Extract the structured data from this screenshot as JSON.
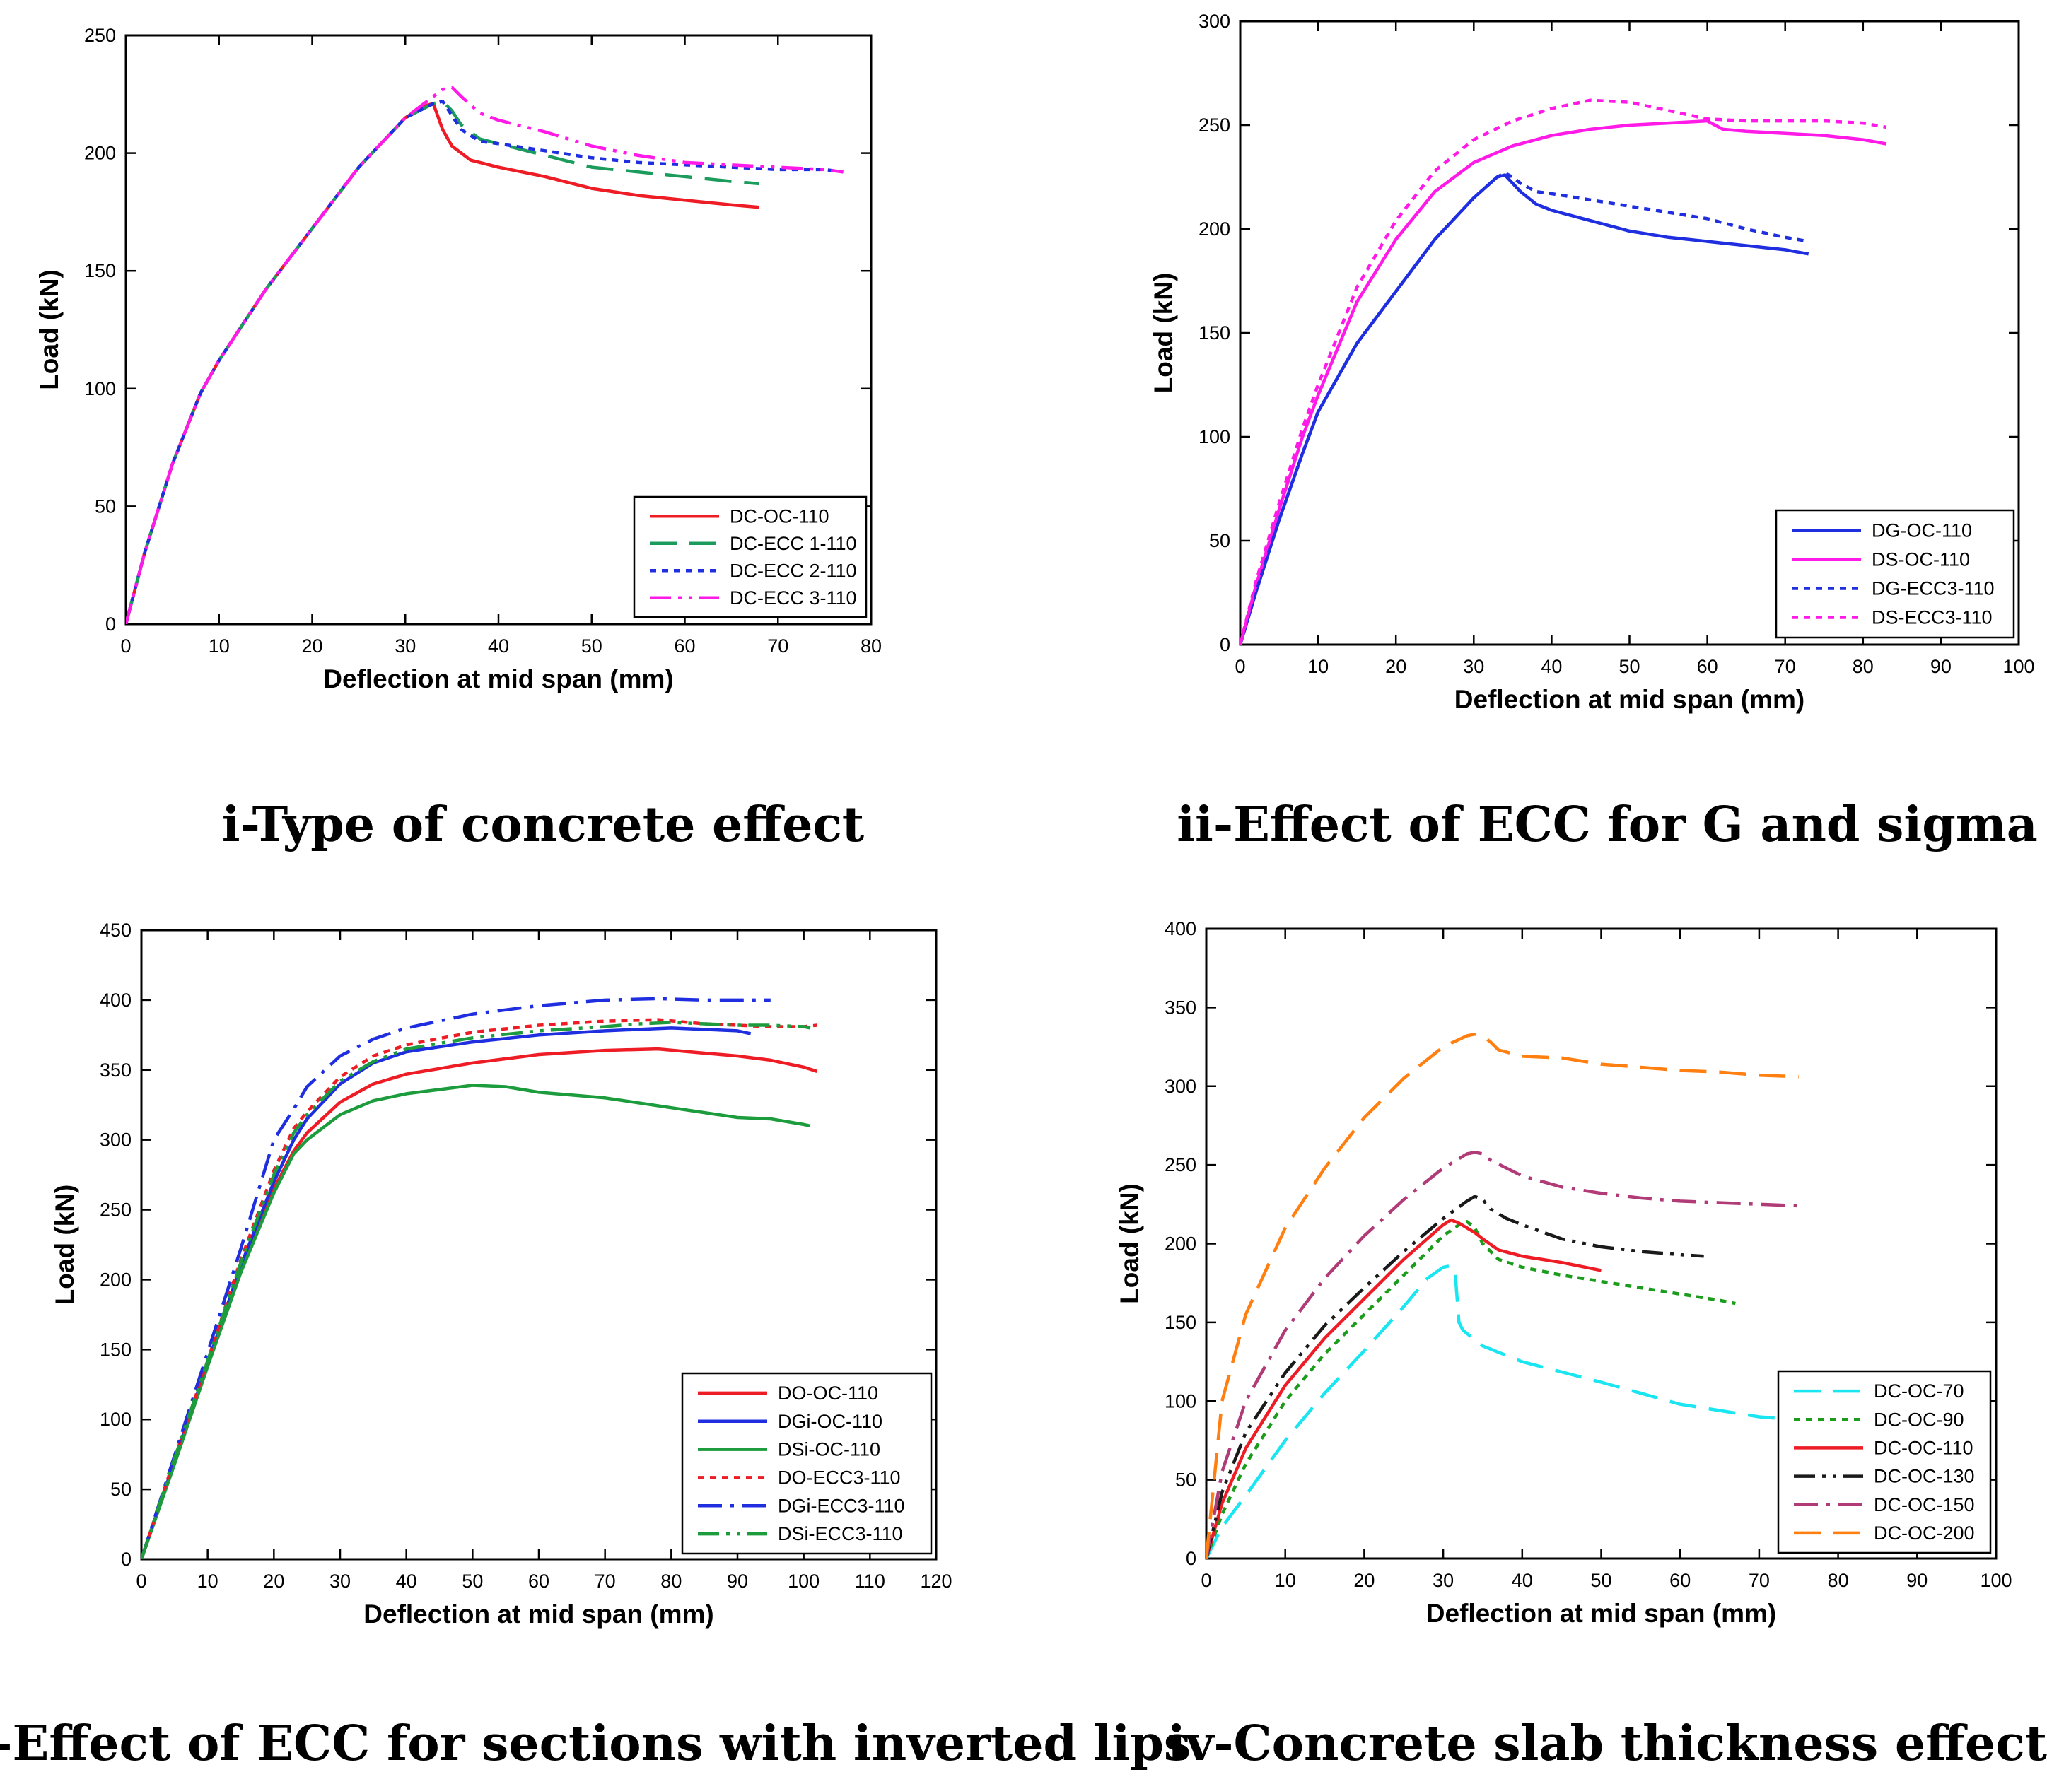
{
  "chart_data": [
    {
      "type": "line",
      "caption": "i-Type of concrete effect",
      "xlabel": "Deflection at mid span (mm)",
      "ylabel": "Load (kN)",
      "xlim": [
        0,
        80
      ],
      "ylim": [
        0,
        250
      ],
      "xticks": [
        "0",
        "10",
        "20",
        "30",
        "40",
        "50",
        "60",
        "70",
        "80"
      ],
      "yticks": [
        "0",
        "50",
        "100",
        "150",
        "200",
        "250"
      ],
      "legend_position": "bottom-right",
      "series": [
        {
          "name": "DC-OC-110",
          "color": "#ee1c25",
          "dash": "solid",
          "x": [
            0,
            2,
            5,
            8,
            10,
            15,
            20,
            25,
            30,
            32,
            33,
            34,
            35,
            37,
            40,
            45,
            50,
            55,
            60,
            65,
            68
          ],
          "y": [
            0,
            30,
            68,
            98,
            112,
            142,
            168,
            194,
            215,
            220,
            221,
            210,
            203,
            197,
            194,
            190,
            185,
            182,
            180,
            178,
            177
          ]
        },
        {
          "name": "DC-ECC 1-110",
          "color": "#1c9c5c",
          "dash": "longdash",
          "x": [
            0,
            2,
            5,
            8,
            10,
            15,
            20,
            25,
            30,
            33,
            34,
            35,
            36,
            38,
            40,
            45,
            50,
            55,
            60,
            65,
            68
          ],
          "y": [
            0,
            30,
            68,
            98,
            112,
            142,
            168,
            194,
            215,
            221,
            222,
            218,
            212,
            206,
            204,
            199,
            194,
            192,
            190,
            188,
            187
          ]
        },
        {
          "name": "DC-ECC 2-110",
          "color": "#1f2fe0",
          "dash": "dot",
          "x": [
            0,
            2,
            5,
            8,
            10,
            15,
            20,
            25,
            30,
            33,
            34,
            35,
            36,
            38,
            40,
            45,
            50,
            55,
            60,
            65,
            70,
            75,
            77
          ],
          "y": [
            0,
            30,
            68,
            98,
            112,
            142,
            168,
            194,
            215,
            221,
            222,
            216,
            210,
            205,
            204,
            201,
            198,
            196,
            195,
            194,
            193,
            193,
            192
          ]
        },
        {
          "name": "DC-ECC 3-110",
          "color": "#ff1ae8",
          "dash": "dashdotdot",
          "x": [
            0,
            2,
            5,
            8,
            10,
            15,
            20,
            25,
            30,
            33,
            34,
            35,
            36,
            38,
            40,
            45,
            50,
            55,
            60,
            65,
            70,
            75,
            77
          ],
          "y": [
            0,
            30,
            68,
            98,
            112,
            142,
            168,
            194,
            215,
            224,
            227,
            228,
            224,
            217,
            214,
            209,
            203,
            199,
            196,
            195,
            194,
            193,
            192
          ]
        }
      ]
    },
    {
      "type": "line",
      "caption": "ii-Effect of ECC for G and sigma",
      "xlabel": "Deflection at mid span (mm)",
      "ylabel": "Load (kN)",
      "xlim": [
        0,
        100
      ],
      "ylim": [
        0,
        300
      ],
      "xticks": [
        "0",
        "10",
        "20",
        "30",
        "40",
        "50",
        "60",
        "70",
        "80",
        "90",
        "100"
      ],
      "yticks": [
        "0",
        "50",
        "100",
        "150",
        "200",
        "250",
        "300"
      ],
      "legend_position": "bottom-right",
      "series": [
        {
          "name": "DG-OC-110",
          "color": "#1f2fe0",
          "dash": "solid",
          "x": [
            0,
            2,
            5,
            8,
            10,
            15,
            20,
            25,
            30,
            33,
            34,
            35,
            36,
            38,
            40,
            45,
            50,
            55,
            60,
            65,
            70,
            73
          ],
          "y": [
            0,
            25,
            60,
            92,
            112,
            145,
            170,
            195,
            215,
            225,
            226,
            222,
            218,
            212,
            209,
            204,
            199,
            196,
            194,
            192,
            190,
            188
          ]
        },
        {
          "name": "DS-OC-110",
          "color": "#ff1ae8",
          "dash": "solid",
          "x": [
            0,
            2,
            5,
            8,
            10,
            15,
            20,
            25,
            30,
            35,
            40,
            45,
            50,
            55,
            60,
            62,
            65,
            70,
            75,
            80,
            83
          ],
          "y": [
            0,
            28,
            65,
            100,
            120,
            165,
            195,
            218,
            232,
            240,
            245,
            248,
            250,
            251,
            252,
            248,
            247,
            246,
            245,
            243,
            241
          ]
        },
        {
          "name": "DG-ECC3-110",
          "color": "#1f2fe0",
          "dash": "dot",
          "x": [
            0,
            2,
            5,
            8,
            10,
            15,
            20,
            25,
            30,
            33,
            34,
            35,
            36,
            38,
            40,
            45,
            50,
            55,
            60,
            65,
            70,
            73
          ],
          "y": [
            0,
            25,
            60,
            92,
            112,
            145,
            170,
            195,
            215,
            225,
            227,
            225,
            222,
            218,
            217,
            214,
            211,
            208,
            205,
            200,
            196,
            194
          ]
        },
        {
          "name": "DS-ECC3-110",
          "color": "#ff1ae8",
          "dash": "dot",
          "x": [
            0,
            2,
            5,
            8,
            10,
            15,
            20,
            25,
            30,
            35,
            40,
            45,
            50,
            55,
            60,
            65,
            70,
            75,
            80,
            83
          ],
          "y": [
            0,
            30,
            68,
            104,
            125,
            172,
            204,
            228,
            243,
            252,
            258,
            262,
            261,
            257,
            253,
            252,
            252,
            252,
            251,
            249
          ]
        }
      ]
    },
    {
      "type": "line",
      "caption": "iii-Effect of ECC for sections with inverted lips",
      "xlabel": "Deflection at mid span (mm)",
      "ylabel": "Load (kN)",
      "xlim": [
        0,
        120
      ],
      "ylim": [
        0,
        450
      ],
      "xticks": [
        "0",
        "10",
        "20",
        "30",
        "40",
        "50",
        "60",
        "70",
        "80",
        "90",
        "100",
        "110",
        "120"
      ],
      "yticks": [
        "0",
        "50",
        "100",
        "150",
        "200",
        "250",
        "300",
        "350",
        "400",
        "450"
      ],
      "legend_position": "bottom-right",
      "series": [
        {
          "name": "DO-OC-110",
          "color": "#ee1c25",
          "dash": "solid",
          "x": [
            0,
            5,
            10,
            15,
            20,
            23,
            25,
            30,
            35,
            40,
            50,
            60,
            70,
            78,
            85,
            90,
            95,
            100,
            102
          ],
          "y": [
            0,
            70,
            140,
            210,
            265,
            292,
            305,
            327,
            340,
            347,
            355,
            361,
            364,
            365,
            362,
            360,
            357,
            352,
            349
          ]
        },
        {
          "name": "DGi-OC-110",
          "color": "#1f2fe0",
          "dash": "solid",
          "x": [
            0,
            5,
            10,
            15,
            20,
            23,
            25,
            30,
            35,
            40,
            50,
            60,
            70,
            80,
            85,
            90,
            92
          ],
          "y": [
            0,
            70,
            140,
            210,
            270,
            300,
            315,
            340,
            355,
            363,
            370,
            375,
            378,
            380,
            379,
            378,
            376
          ]
        },
        {
          "name": "DSi-OC-110",
          "color": "#1c9c3c",
          "dash": "solid",
          "x": [
            0,
            5,
            10,
            15,
            20,
            23,
            25,
            30,
            35,
            40,
            45,
            50,
            55,
            60,
            70,
            80,
            90,
            95,
            100,
            101
          ],
          "y": [
            0,
            68,
            138,
            205,
            262,
            290,
            300,
            318,
            328,
            333,
            336,
            339,
            338,
            334,
            330,
            323,
            316,
            315,
            311,
            310
          ]
        },
        {
          "name": "DO-ECC3-110",
          "color": "#ee1c25",
          "dash": "dot",
          "x": [
            0,
            5,
            10,
            15,
            20,
            23,
            25,
            30,
            35,
            40,
            50,
            60,
            70,
            78,
            85,
            90,
            95,
            100,
            102
          ],
          "y": [
            0,
            72,
            142,
            214,
            278,
            308,
            320,
            345,
            360,
            368,
            377,
            382,
            385,
            386,
            383,
            382,
            381,
            381,
            382
          ]
        },
        {
          "name": "DGi-ECC3-110",
          "color": "#1f2fe0",
          "dash": "dashdot",
          "x": [
            0,
            5,
            10,
            15,
            20,
            23,
            25,
            30,
            35,
            40,
            50,
            60,
            70,
            78,
            85,
            90,
            95
          ],
          "y": [
            0,
            74,
            148,
            222,
            300,
            322,
            338,
            360,
            372,
            380,
            390,
            396,
            400,
            401,
            400,
            400,
            400
          ]
        },
        {
          "name": "DSi-ECC3-110",
          "color": "#1c9c3c",
          "dash": "dashdotdot",
          "x": [
            0,
            5,
            10,
            15,
            20,
            23,
            25,
            30,
            35,
            40,
            50,
            60,
            70,
            75,
            80,
            85,
            90,
            95,
            100,
            101
          ],
          "y": [
            0,
            72,
            142,
            212,
            275,
            305,
            318,
            342,
            356,
            365,
            373,
            378,
            381,
            383,
            384,
            383,
            382,
            382,
            381,
            380
          ]
        }
      ]
    },
    {
      "type": "line",
      "caption": "iv-Concrete slab thickness effect",
      "xlabel": "Deflection at mid span (mm)",
      "ylabel": "Load (kN)",
      "xlim": [
        0,
        100
      ],
      "ylim": [
        0,
        400
      ],
      "xticks": [
        "0",
        "10",
        "20",
        "30",
        "40",
        "50",
        "60",
        "70",
        "80",
        "90",
        "100"
      ],
      "yticks": [
        "0",
        "50",
        "100",
        "150",
        "200",
        "250",
        "300",
        "350",
        "400"
      ],
      "legend_position": "bottom-right",
      "series": [
        {
          "name": "DC-OC-70",
          "color": "#19e6f0",
          "dash": "longdash",
          "x": [
            0,
            2,
            5,
            10,
            15,
            20,
            25,
            28,
            30,
            31,
            31.5,
            32,
            32.5,
            35,
            40,
            50,
            60,
            70,
            75
          ],
          "y": [
            0,
            20,
            40,
            75,
            105,
            132,
            160,
            178,
            185,
            186,
            182,
            150,
            145,
            135,
            125,
            112,
            98,
            90,
            88
          ]
        },
        {
          "name": "DC-OC-90",
          "color": "#1c9c1c",
          "dash": "dot",
          "x": [
            0,
            2,
            5,
            10,
            15,
            20,
            25,
            30,
            32,
            33,
            34,
            35,
            37,
            40,
            45,
            50,
            55,
            60,
            65,
            67
          ],
          "y": [
            0,
            28,
            60,
            100,
            130,
            155,
            180,
            205,
            212,
            214,
            210,
            200,
            190,
            185,
            180,
            176,
            172,
            168,
            164,
            162
          ]
        },
        {
          "name": "DC-OC-110",
          "color": "#ee1c25",
          "dash": "solid",
          "x": [
            0,
            2,
            5,
            10,
            15,
            20,
            25,
            30,
            31,
            32,
            33,
            34,
            35,
            37,
            40,
            45,
            50
          ],
          "y": [
            0,
            35,
            70,
            110,
            140,
            165,
            190,
            212,
            215,
            213,
            210,
            207,
            203,
            196,
            192,
            188,
            183
          ]
        },
        {
          "name": "DC-OC-130",
          "color": "#1a1a1a",
          "dash": "dashdotdot",
          "x": [
            0,
            2,
            5,
            10,
            15,
            20,
            25,
            30,
            33,
            34,
            35,
            36,
            38,
            40,
            45,
            50,
            55,
            60,
            63
          ],
          "y": [
            0,
            42,
            80,
            118,
            148,
            172,
            195,
            216,
            227,
            230,
            228,
            222,
            216,
            212,
            203,
            198,
            195,
            193,
            192
          ]
        },
        {
          "name": "DC-OC-150",
          "color": "#b03b77",
          "dash": "dashdot",
          "x": [
            0,
            2,
            5,
            10,
            15,
            20,
            25,
            30,
            33,
            34,
            35,
            36,
            38,
            40,
            45,
            50,
            55,
            60,
            65,
            70,
            75
          ],
          "y": [
            0,
            55,
            100,
            145,
            178,
            205,
            228,
            248,
            257,
            258,
            257,
            253,
            248,
            243,
            236,
            232,
            229,
            227,
            226,
            225,
            224
          ]
        },
        {
          "name": "DC-OC-200",
          "color": "#ff7f10",
          "dash": "longdash",
          "x": [
            0,
            1,
            2,
            5,
            10,
            15,
            20,
            25,
            30,
            33,
            34,
            35,
            36,
            37,
            40,
            45,
            50,
            55,
            60,
            65,
            70,
            75
          ],
          "y": [
            0,
            50,
            100,
            155,
            210,
            248,
            280,
            305,
            325,
            332,
            333,
            332,
            328,
            323,
            319,
            318,
            314,
            312,
            310,
            309,
            307,
            306
          ]
        }
      ]
    }
  ]
}
